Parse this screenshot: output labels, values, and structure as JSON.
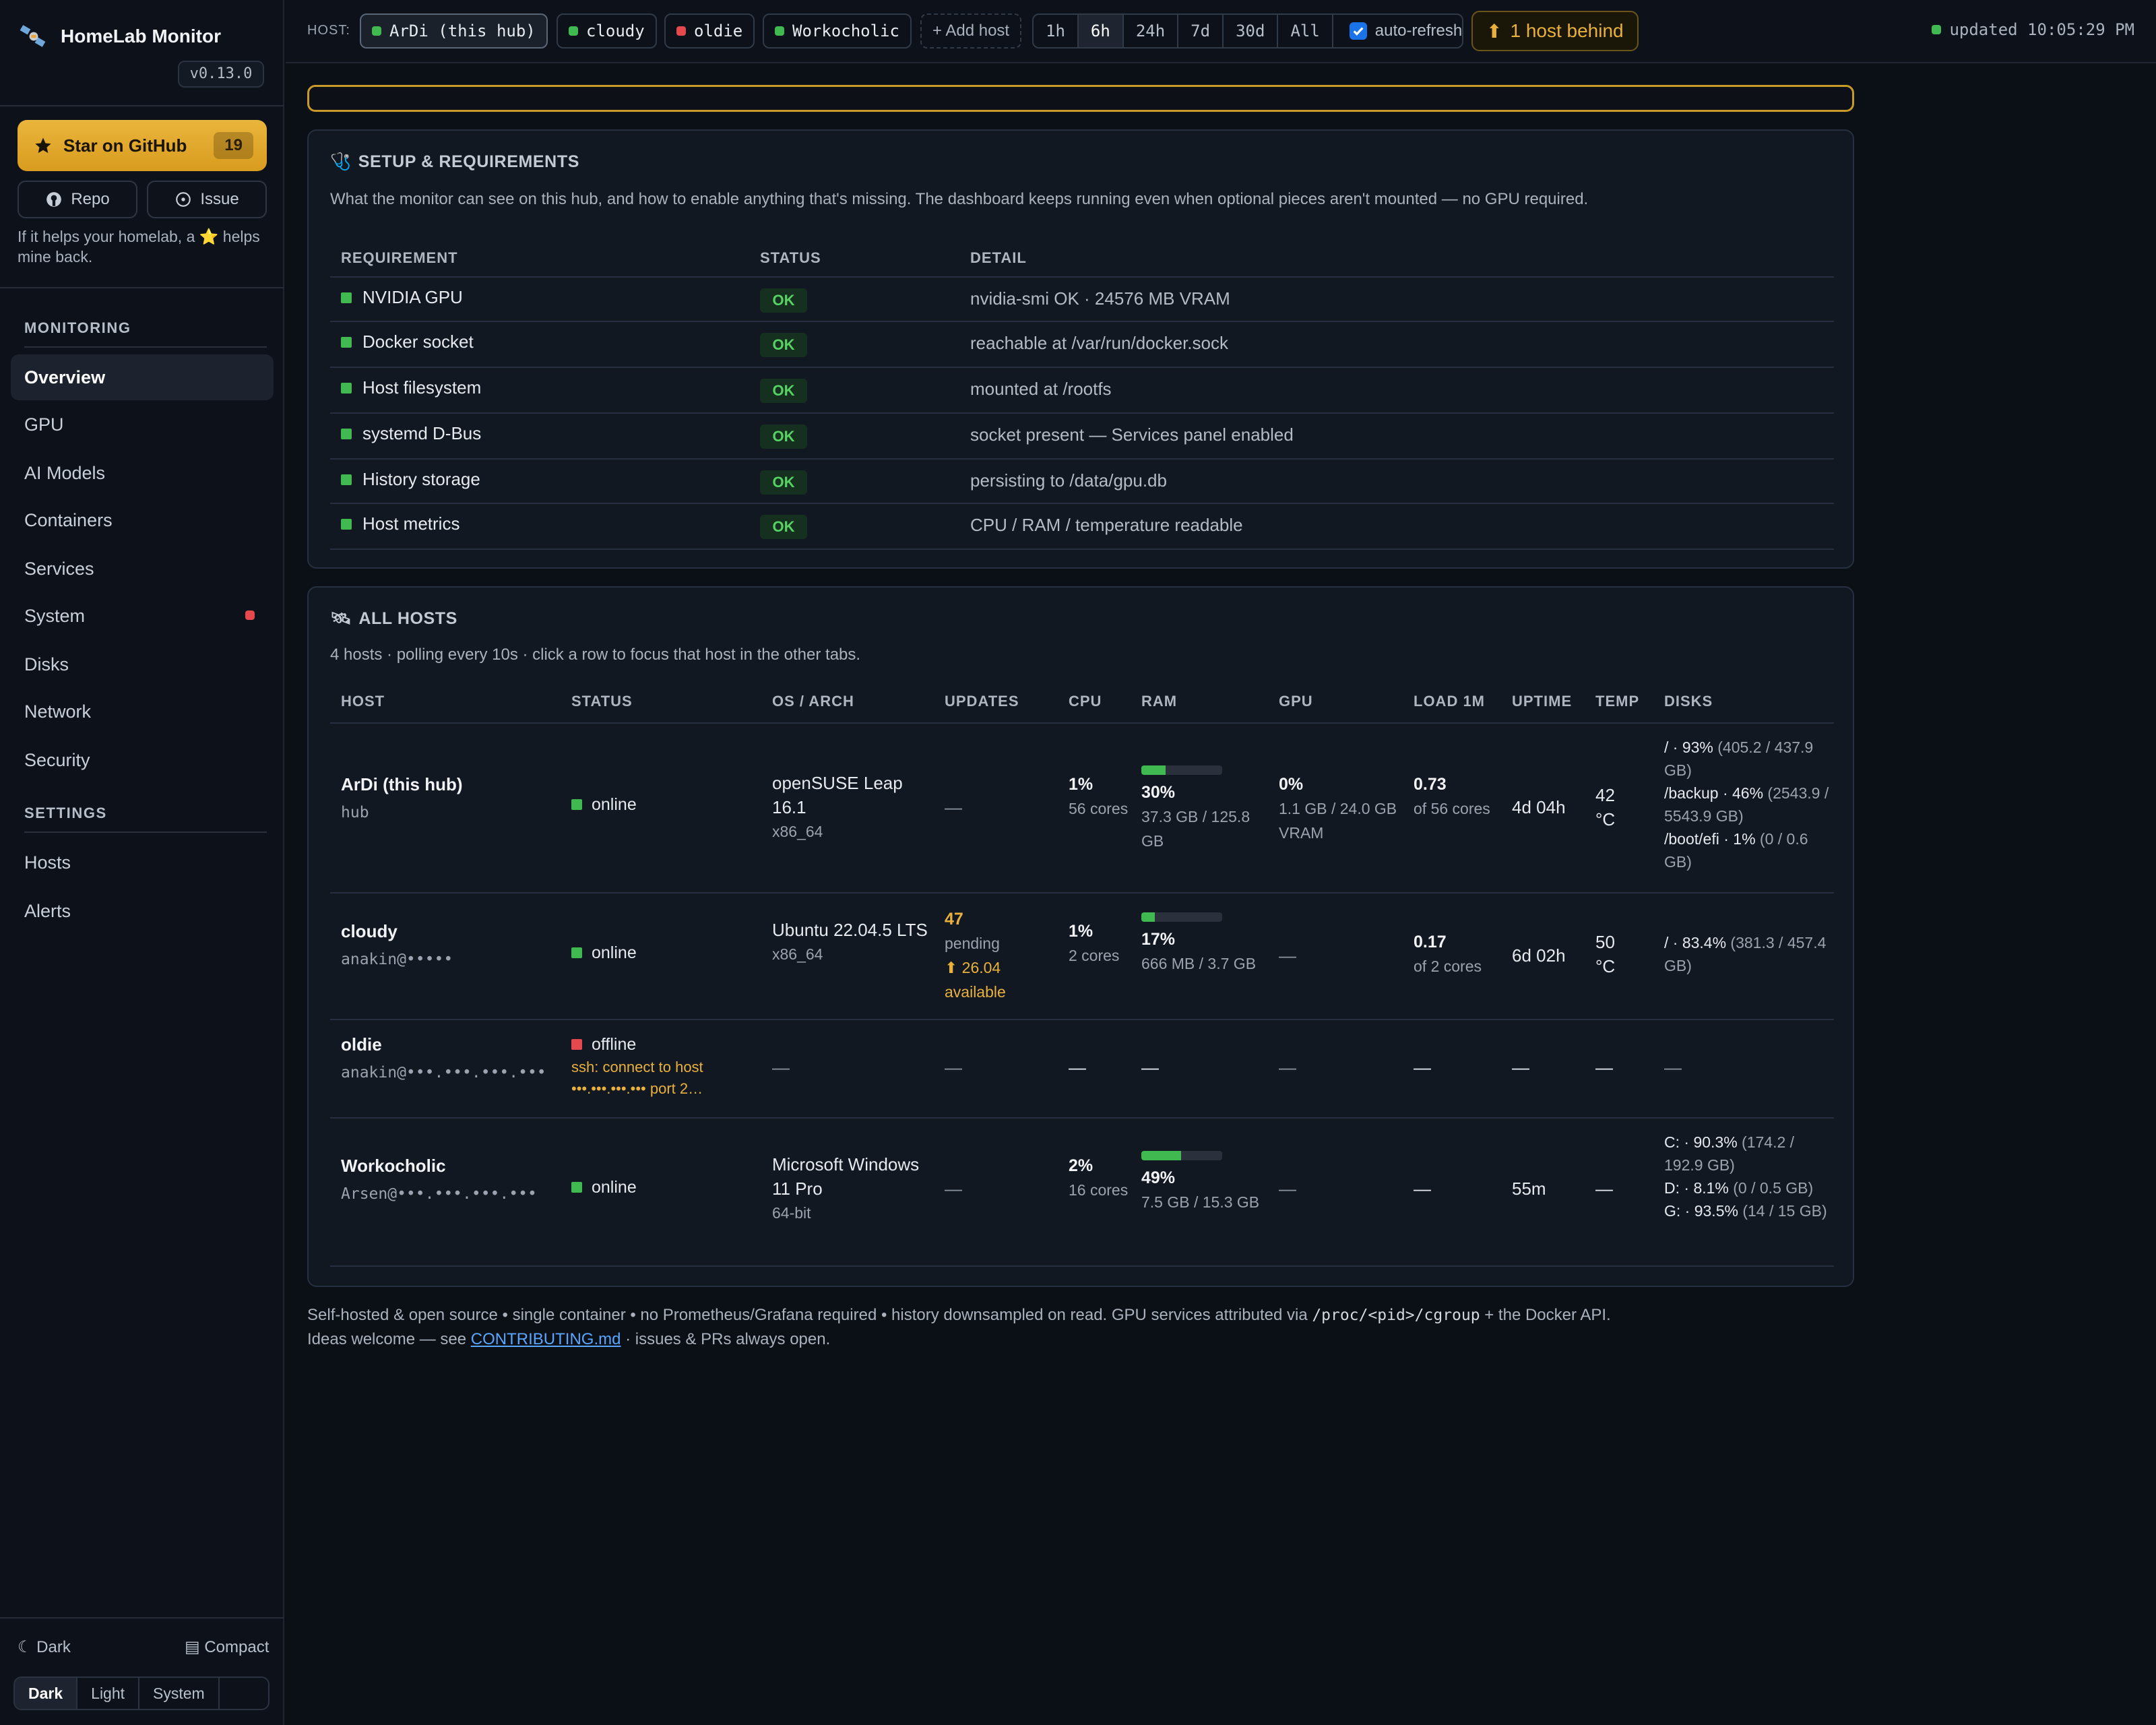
{
  "app": {
    "title": "HomeLab Monitor",
    "version": "v0.13.0"
  },
  "sidebar": {
    "star_label": "Star on GitHub",
    "star_count": "19",
    "repo_label": "Repo",
    "issue_label": "Issue",
    "help_text": "If it helps your homelab, a ⭐ helps mine back.",
    "monitoring_label": "MONITORING",
    "settings_label": "SETTINGS",
    "items": [
      "Overview",
      "GPU",
      "AI Models",
      "Containers",
      "Services",
      "System",
      "Disks",
      "Network",
      "Security"
    ],
    "settings_items": [
      "Hosts",
      "Alerts"
    ],
    "theme_toggle": "☾ Dark",
    "compact_toggle": "▤ Compact",
    "theme_options": [
      "Dark",
      "Light",
      "System"
    ]
  },
  "topbar": {
    "host_label": "HOST:",
    "hosts": [
      {
        "name": "ArDi (this hub)",
        "color": "#3fb950"
      },
      {
        "name": "cloudy",
        "color": "#3fb950"
      },
      {
        "name": "oldie",
        "color": "#e5484d"
      },
      {
        "name": "Workocholic",
        "color": "#3fb950"
      }
    ],
    "add_host": "+ Add host",
    "ranges": [
      "1h",
      "6h",
      "24h",
      "7d",
      "30d",
      "All"
    ],
    "selected_range": "6h",
    "auto_refresh": "auto-refresh",
    "behind": "1 host behind",
    "updated": "updated 10:05:29 PM"
  },
  "setup": {
    "title": "SETUP & REQUIREMENTS",
    "description": "What the monitor can see on this hub, and how to enable anything that's missing. The dashboard keeps running even when optional pieces aren't mounted — no GPU required.",
    "headers": {
      "requirement": "REQUIREMENT",
      "status": "STATUS",
      "detail": "DETAIL"
    },
    "rows": [
      {
        "name": "NVIDIA GPU",
        "status": "OK",
        "detail": "nvidia-smi OK · 24576 MB VRAM"
      },
      {
        "name": "Docker socket",
        "status": "OK",
        "detail": "reachable at /var/run/docker.sock"
      },
      {
        "name": "Host filesystem",
        "status": "OK",
        "detail": "mounted at /rootfs"
      },
      {
        "name": "systemd D-Bus",
        "status": "OK",
        "detail": "socket present — Services panel enabled"
      },
      {
        "name": "History storage",
        "status": "OK",
        "detail": "persisting to /data/gpu.db"
      },
      {
        "name": "Host metrics",
        "status": "OK",
        "detail": "CPU / RAM / temperature readable"
      }
    ]
  },
  "hosts_table": {
    "title": "ALL HOSTS",
    "description": "4 hosts · polling every 10s · click a row to focus that host in the other tabs.",
    "headers": {
      "host": "HOST",
      "status": "STATUS",
      "os": "OS / ARCH",
      "updates": "UPDATES",
      "cpu": "CPU",
      "ram": "RAM",
      "gpu": "GPU",
      "load": "LOAD 1M",
      "uptime": "UPTIME",
      "temp": "TEMP",
      "disks": "DISKS"
    },
    "dash": "—",
    "rows": [
      {
        "name": "ArDi (this hub)",
        "sub": "hub",
        "status": "online",
        "os": "openSUSE Leap 16.1",
        "arch": "x86_64",
        "updates": "—",
        "cpu": "1%",
        "cpu_sub": "56 cores",
        "ram": "30%",
        "ram_frac": 0.3,
        "ram_sub": "37.3 GB / 125.8 GB",
        "gpu": "0%",
        "gpu_sub": "1.1 GB / 24.0 GB VRAM",
        "load": "0.73",
        "load_sub": "of 56 cores",
        "uptime": "4d 04h",
        "temp": "42 °C",
        "disks": [
          {
            "name": "/ · 93%",
            "detail": " (405.2 / 437.9 GB)"
          },
          {
            "name": "/backup · 46%",
            "detail": " (2543.9 / 5543.9 GB)"
          },
          {
            "name": "/boot/efi · 1%",
            "detail": " (0 / 0.6 GB)"
          }
        ]
      },
      {
        "name": "cloudy",
        "sub": "anakin@•••••",
        "status": "online",
        "os": "Ubuntu 22.04.5 LTS",
        "arch": "x86_64",
        "updates_count": "47",
        "updates_pending": "pending",
        "updates_avail": "⬆ 26.04 available",
        "cpu": "1%",
        "cpu_sub": "2 cores",
        "ram": "17%",
        "ram_frac": 0.17,
        "ram_sub": "666 MB / 3.7 GB",
        "gpu": "—",
        "load": "0.17",
        "load_sub": "of 2 cores",
        "uptime": "6d 02h",
        "temp": "50 °C",
        "disks": [
          {
            "name": "/ · 83.4%",
            "detail": " (381.3 / 457.4 GB)"
          }
        ]
      },
      {
        "name": "oldie",
        "sub": "anakin@•••.•••.•••.•••",
        "status": "offline",
        "error": "ssh: connect to host •••.•••.•••.••• port 2…"
      },
      {
        "name": "Workocholic",
        "sub": "Arsen@•••.•••.•••.•••",
        "status": "online",
        "os": "Microsoft Windows 11 Pro",
        "arch": "64-bit",
        "updates": "—",
        "cpu": "2%",
        "cpu_sub": "16 cores",
        "ram": "49%",
        "ram_frac": 0.49,
        "ram_sub": "7.5 GB / 15.3 GB",
        "gpu": "—",
        "load": "—",
        "uptime": "55m",
        "temp": "—",
        "disks": [
          {
            "name": "C: · 90.3%",
            "detail": " (174.2 / 192.9 GB)"
          },
          {
            "name": "D: · 8.1%",
            "detail": " (0 / 0.5 GB)"
          },
          {
            "name": "G: · 93.5%",
            "detail": " (14 / 15 GB)"
          }
        ]
      }
    ]
  },
  "footer": {
    "line1_a": "Self-hosted & open source • single container • no Prometheus/Grafana required • history downsampled on read. GPU services attributed via ",
    "line1_code": "/proc/<pid>/cgroup",
    "line1_b": " + the Docker API.",
    "line2_a": "Ideas welcome — see ",
    "line2_link": "CONTRIBUTING.md",
    "line2_b": " · issues & PRs always open."
  },
  "colors": {
    "accent": "#e9b13c",
    "online": "#3fb950",
    "offline": "#e5484d",
    "link": "#58a6ff"
  }
}
